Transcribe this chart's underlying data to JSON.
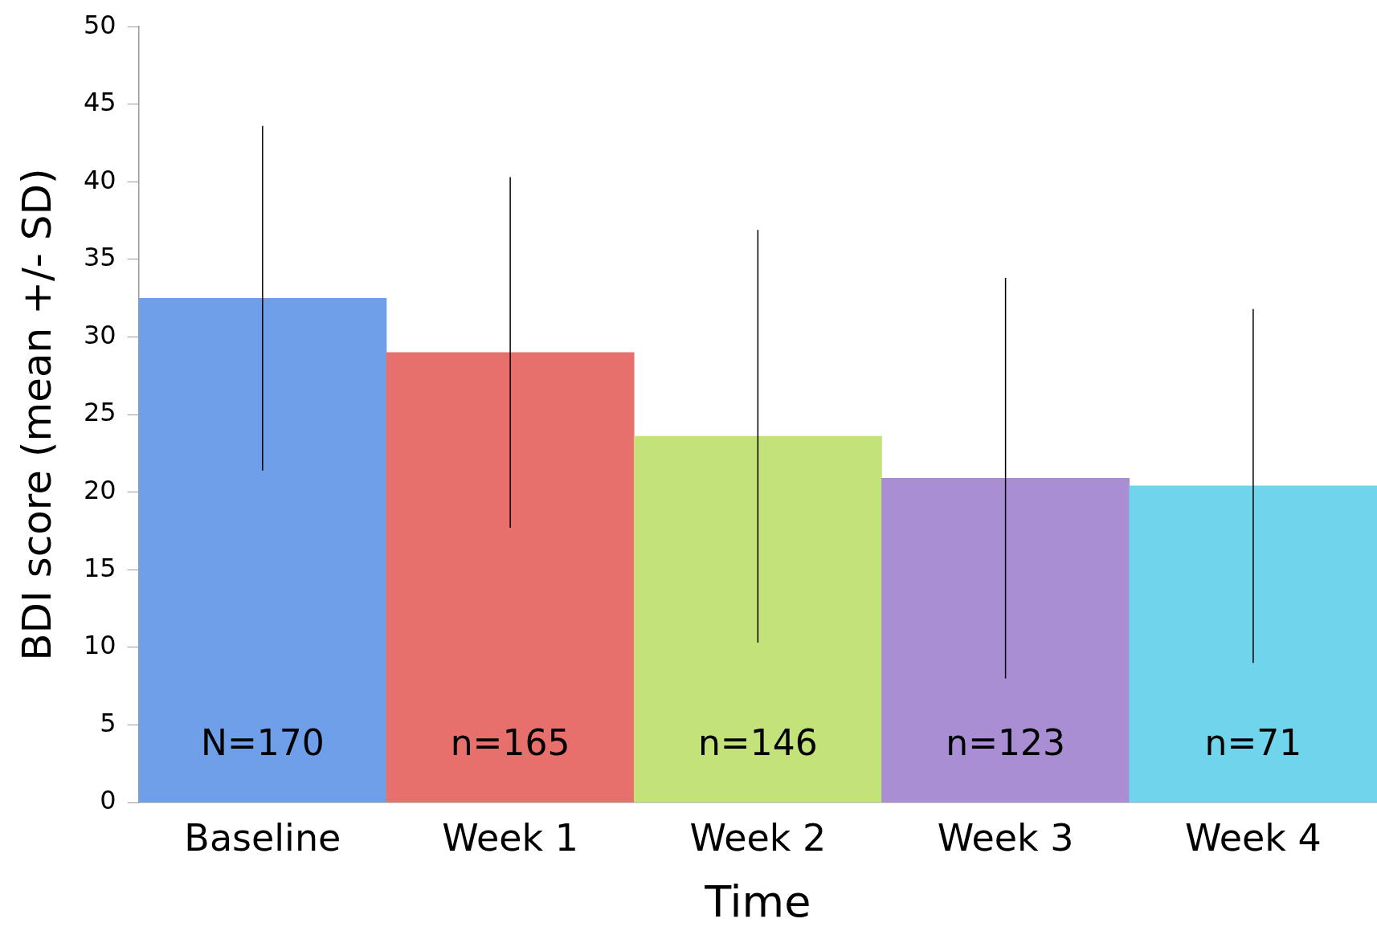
{
  "chart_data": {
    "type": "bar",
    "xlabel": "Time",
    "ylabel": "BDI score (mean +/- SD)",
    "categories": [
      "Baseline",
      "Week 1",
      "Week 2",
      "Week 3",
      "Week 4"
    ],
    "values": [
      32.5,
      29.0,
      23.6,
      20.9,
      20.4
    ],
    "errors": [
      11.1,
      11.3,
      13.3,
      12.9,
      11.4
    ],
    "colors": [
      "#6f9fe8",
      "#e8706c",
      "#c4e27a",
      "#a98ed4",
      "#6fd4ec"
    ],
    "ylim": [
      0,
      50
    ],
    "yticks": [
      0,
      5,
      10,
      15,
      20,
      25,
      30,
      35,
      40,
      45,
      50
    ],
    "grid": false,
    "legend": false,
    "annotations": [
      "N=170",
      "n=165",
      "n=146",
      "n=123",
      "n=71"
    ]
  }
}
